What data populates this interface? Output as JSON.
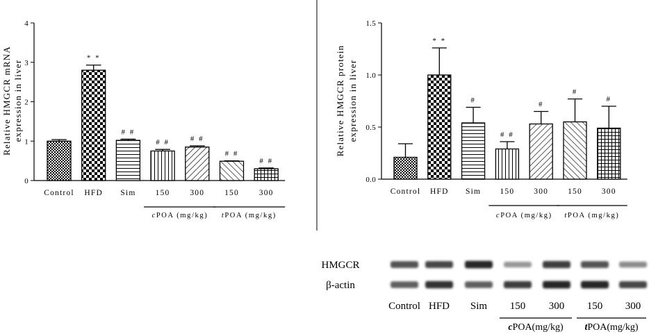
{
  "chart_data": [
    {
      "type": "bar",
      "ylabel": [
        "Relative HMGCR mRNA",
        "expression in liver"
      ],
      "ylim": [
        0,
        4
      ],
      "yticks": [
        "0",
        "1",
        "2",
        "3",
        "4"
      ],
      "categories": [
        "Control",
        "HFD",
        "Sim",
        "150",
        "300",
        "150",
        "300"
      ],
      "values": [
        1.0,
        2.8,
        1.02,
        0.75,
        0.85,
        0.49,
        0.3
      ],
      "errors": [
        0.04,
        0.13,
        0.03,
        0.04,
        0.03,
        0.01,
        0.02
      ],
      "significance": [
        "",
        "* *",
        "# #",
        "# #",
        "# #",
        "# #",
        "# #"
      ],
      "patterns": [
        "checker-small",
        "checker-large",
        "horizontal",
        "vertical",
        "diagonal-up",
        "diagonal-down",
        "grid"
      ],
      "groups": [
        {
          "prefix": "c",
          "label": "POA (mg/kg)",
          "span": [
            3,
            4
          ]
        },
        {
          "prefix": "t",
          "label": "POA (mg/kg)",
          "span": [
            5,
            6
          ]
        }
      ]
    },
    {
      "type": "bar",
      "ylabel": [
        "Relative HMGCR protein",
        "expression in liver"
      ],
      "ylim": [
        0,
        1.5
      ],
      "yticks": [
        "0.0",
        "0.5",
        "1.0",
        "1.5"
      ],
      "categories": [
        "Control",
        "HFD",
        "Sim",
        "150",
        "300",
        "150",
        "300"
      ],
      "values": [
        0.21,
        1.0,
        0.54,
        0.29,
        0.53,
        0.55,
        0.49
      ],
      "errors": [
        0.13,
        0.26,
        0.15,
        0.07,
        0.12,
        0.22,
        0.21
      ],
      "significance": [
        "",
        "* *",
        "#",
        "# #",
        "#",
        "#",
        "#"
      ],
      "patterns": [
        "checker-small",
        "checker-large",
        "horizontal",
        "vertical",
        "diagonal-up",
        "diagonal-down",
        "grid"
      ],
      "groups": [
        {
          "prefix": "c",
          "label": "POA (mg/kg)",
          "span": [
            3,
            4
          ]
        },
        {
          "prefix": "t",
          "label": "POA (mg/kg)",
          "span": [
            5,
            6
          ]
        }
      ]
    }
  ],
  "western_blot": {
    "rows": [
      {
        "label": "HMGCR",
        "intensity": [
          0.75,
          0.8,
          0.95,
          0.45,
          0.85,
          0.75,
          0.5
        ]
      },
      {
        "label": "β-actin",
        "intensity": [
          0.7,
          0.9,
          0.7,
          0.85,
          0.95,
          0.95,
          0.8
        ]
      }
    ],
    "lanes": [
      "Control",
      "HFD",
      "Sim",
      "150",
      "300",
      "150",
      "300"
    ],
    "groups": [
      {
        "prefix": "c",
        "label": "POA(mg/kg)"
      },
      {
        "prefix": "t",
        "label": "POA(mg/kg)"
      }
    ]
  }
}
